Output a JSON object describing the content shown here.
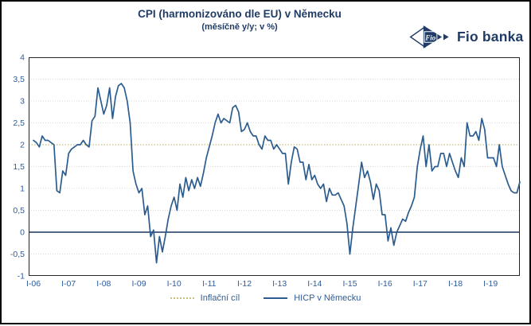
{
  "header": {
    "title": "CPI (harmonizováno dle EU) v Německu",
    "subtitle": "(měsíčně y/y; v %)"
  },
  "logo": {
    "flag_text": "Fio",
    "brand": "Fio banka"
  },
  "colors": {
    "title": "#1F3B66",
    "axis_label": "#2E5C99",
    "hicp_line": "#2B5C8F",
    "target_line": "#C9C07E",
    "zero_line": "#17365D",
    "gridline": "#D9D9D9",
    "plot_border": "#262626"
  },
  "chart_data": {
    "type": "line",
    "title": "CPI (harmonizováno dle EU) v Německu",
    "subtitle": "(měsíčně y/y; v %)",
    "unit": "%",
    "frequency": "monthly",
    "grid": true,
    "legend_position": "bottom",
    "x_labels": [
      "I-06",
      "I-07",
      "I-08",
      "I-09",
      "I-10",
      "I-11",
      "I-12",
      "I-13",
      "I-14",
      "I-15",
      "I-16",
      "I-17",
      "I-18",
      "I-19"
    ],
    "months_per_x_label": 12,
    "ylim": [
      -1,
      4
    ],
    "y_ticks": [
      {
        "label": "4",
        "value": 4
      },
      {
        "label": "3,5",
        "value": 3.5
      },
      {
        "label": "3",
        "value": 3
      },
      {
        "label": "2,5",
        "value": 2.5
      },
      {
        "label": "2",
        "value": 2
      },
      {
        "label": "1,5",
        "value": 1.5
      },
      {
        "label": "1",
        "value": 1
      },
      {
        "label": "0,5",
        "value": 0.5
      },
      {
        "label": "0",
        "value": 0
      },
      {
        "label": "-0,5",
        "value": -0.5
      },
      {
        "label": "-1",
        "value": -1
      }
    ],
    "target": {
      "name": "Inflační cíl",
      "value": 2
    },
    "legend": [
      "Inflační cíl",
      "HICP v Německu"
    ],
    "series": [
      {
        "name": "HICP v Německu",
        "start_label": "I-06",
        "values": [
          2.1,
          2.05,
          1.95,
          2.2,
          2.1,
          2.1,
          2.05,
          2.0,
          0.95,
          0.9,
          1.4,
          1.3,
          1.8,
          1.9,
          1.95,
          2.0,
          2.0,
          2.1,
          2.0,
          1.95,
          2.55,
          2.65,
          3.3,
          3.0,
          2.7,
          2.9,
          3.3,
          2.6,
          3.1,
          3.35,
          3.4,
          3.3,
          3.0,
          2.5,
          1.4,
          1.1,
          0.9,
          1.0,
          0.4,
          0.6,
          -0.1,
          0.05,
          -0.7,
          -0.1,
          -0.45,
          -0.1,
          0.3,
          0.6,
          0.8,
          0.5,
          1.1,
          0.8,
          1.25,
          0.95,
          1.2,
          1.0,
          1.25,
          1.05,
          1.35,
          1.7,
          1.95,
          2.2,
          2.5,
          2.7,
          2.5,
          2.6,
          2.55,
          2.5,
          2.85,
          2.9,
          2.75,
          2.3,
          2.35,
          2.5,
          2.3,
          2.2,
          2.2,
          2.0,
          1.9,
          2.2,
          2.1,
          2.1,
          1.9,
          2.0,
          1.9,
          1.8,
          1.8,
          1.1,
          1.6,
          1.95,
          1.9,
          1.6,
          1.6,
          1.2,
          1.55,
          1.2,
          1.3,
          1.1,
          1.0,
          1.1,
          0.7,
          1.0,
          0.85,
          0.85,
          0.9,
          0.75,
          0.6,
          0.2,
          -0.5,
          0.1,
          0.6,
          1.1,
          1.6,
          1.25,
          1.4,
          1.15,
          0.75,
          1.1,
          0.95,
          0.4,
          0.4,
          -0.2,
          0.1,
          -0.3,
          0.0,
          0.15,
          0.3,
          0.25,
          0.45,
          0.6,
          0.8,
          1.5,
          1.9,
          2.2,
          1.5,
          2.0,
          1.4,
          1.5,
          1.5,
          1.8,
          1.8,
          1.5,
          1.8,
          1.6,
          1.4,
          1.25,
          1.7,
          1.5,
          2.5,
          2.2,
          2.2,
          2.3,
          2.1,
          2.6,
          2.35,
          1.7,
          1.7,
          1.7,
          1.5,
          2.0,
          1.5,
          1.3,
          1.1,
          0.95,
          0.9,
          0.9,
          1.15
        ]
      }
    ]
  }
}
